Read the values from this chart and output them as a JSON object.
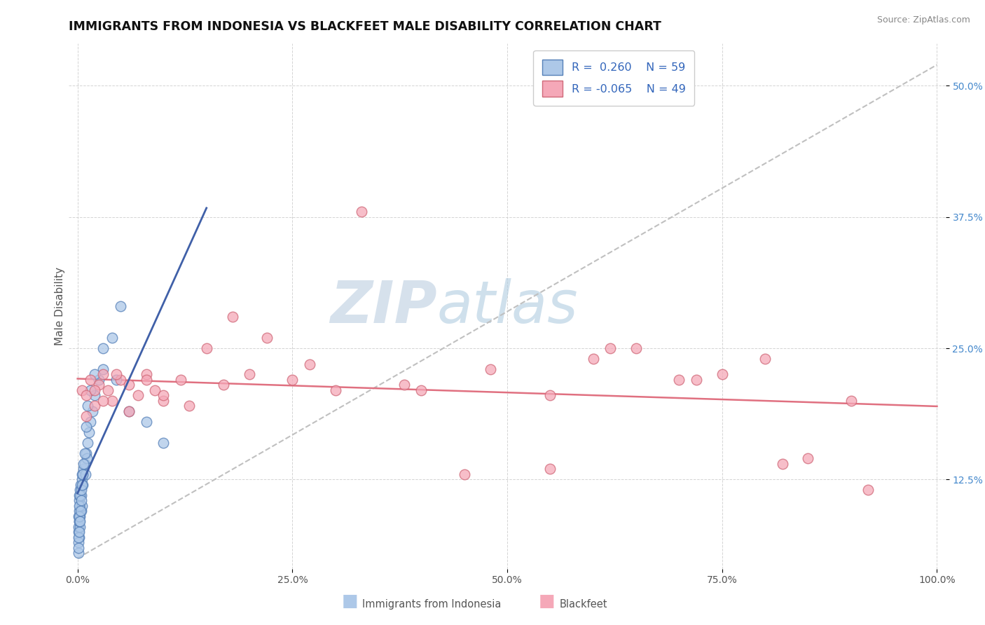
{
  "title": "IMMIGRANTS FROM INDONESIA VS BLACKFEET MALE DISABILITY CORRELATION CHART",
  "source": "Source: ZipAtlas.com",
  "ylabel": "Male Disability",
  "legend_labels": [
    "Immigrants from Indonesia",
    "Blackfeet"
  ],
  "R_blue": 0.26,
  "N_blue": 59,
  "R_pink": -0.065,
  "N_pink": 49,
  "blue_face_color": "#adc8e8",
  "blue_edge_color": "#5580b8",
  "pink_face_color": "#f5a8b8",
  "pink_edge_color": "#d06878",
  "trend_dashed_color": "#c0c0c0",
  "trend_blue_solid_color": "#4060a8",
  "trend_pink_solid_color": "#e07080",
  "watermark_zip_color": "#c8d8e8",
  "watermark_atlas_color": "#a8c4d8",
  "grid_color": "#d0d0d0",
  "title_color": "#111111",
  "source_color": "#888888",
  "axis_label_color": "#555555",
  "ytick_color": "#4488cc",
  "xtick_color": "#555555",
  "legend_text_color": "#3366bb",
  "xlim": [
    -1,
    101
  ],
  "ylim": [
    4,
    54
  ],
  "x_ticks": [
    0,
    25,
    50,
    75,
    100
  ],
  "y_ticks": [
    12.5,
    25.0,
    37.5,
    50.0
  ],
  "blue_x": [
    0.1,
    0.1,
    0.1,
    0.15,
    0.15,
    0.2,
    0.2,
    0.2,
    0.25,
    0.25,
    0.3,
    0.3,
    0.35,
    0.4,
    0.4,
    0.5,
    0.5,
    0.5,
    0.6,
    0.7,
    0.8,
    0.9,
    1.0,
    1.1,
    1.2,
    1.3,
    1.5,
    1.7,
    2.0,
    2.5,
    3.0,
    4.0,
    5.0,
    0.1,
    0.1,
    0.15,
    0.15,
    0.2,
    0.2,
    0.25,
    0.3,
    0.35,
    0.4,
    0.45,
    0.5,
    0.6,
    0.7,
    0.8,
    1.0,
    1.2,
    1.5,
    2.0,
    3.0,
    4.5,
    6.0,
    8.0,
    10.0,
    0.1,
    0.1
  ],
  "blue_y": [
    7.5,
    8.0,
    9.0,
    7.0,
    8.5,
    9.5,
    10.5,
    11.0,
    8.0,
    9.0,
    10.0,
    11.5,
    12.0,
    9.5,
    11.0,
    10.0,
    12.5,
    13.0,
    12.0,
    13.5,
    14.0,
    13.0,
    15.0,
    14.5,
    16.0,
    17.0,
    18.0,
    19.0,
    20.5,
    22.0,
    23.0,
    26.0,
    29.0,
    6.5,
    7.0,
    7.5,
    8.5,
    9.0,
    10.0,
    11.0,
    8.5,
    9.5,
    10.5,
    11.5,
    12.0,
    13.0,
    14.0,
    15.0,
    17.5,
    19.5,
    21.0,
    22.5,
    25.0,
    22.0,
    19.0,
    18.0,
    16.0,
    5.5,
    6.0
  ],
  "pink_x": [
    0.5,
    1.0,
    1.5,
    2.0,
    2.5,
    3.0,
    3.5,
    4.0,
    5.0,
    6.0,
    7.0,
    8.0,
    9.0,
    10.0,
    12.0,
    15.0,
    18.0,
    22.0,
    27.0,
    33.0,
    40.0,
    48.0,
    55.0,
    60.0,
    65.0,
    70.0,
    75.0,
    80.0,
    85.0,
    90.0,
    1.0,
    2.0,
    3.0,
    4.5,
    6.0,
    8.0,
    10.0,
    13.0,
    17.0,
    20.0,
    25.0,
    30.0,
    38.0,
    45.0,
    55.0,
    62.0,
    72.0,
    82.0,
    92.0
  ],
  "pink_y": [
    21.0,
    20.5,
    22.0,
    19.5,
    21.5,
    22.5,
    21.0,
    20.0,
    22.0,
    21.5,
    20.5,
    22.5,
    21.0,
    20.0,
    22.0,
    25.0,
    28.0,
    26.0,
    23.5,
    38.0,
    21.0,
    23.0,
    20.5,
    24.0,
    25.0,
    22.0,
    22.5,
    24.0,
    14.5,
    20.0,
    18.5,
    21.0,
    20.0,
    22.5,
    19.0,
    22.0,
    20.5,
    19.5,
    21.5,
    22.5,
    22.0,
    21.0,
    21.5,
    13.0,
    13.5,
    25.0,
    22.0,
    14.0,
    11.5
  ]
}
